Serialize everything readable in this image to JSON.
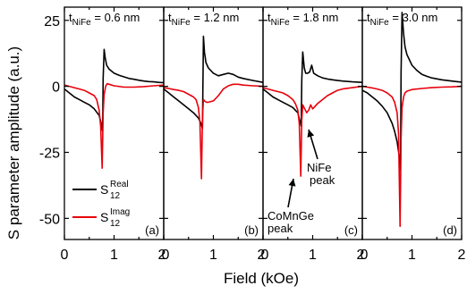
{
  "figure": {
    "ylabel": "S parameter amplitude (a.u.)",
    "xlabel": "Field (kOe)"
  },
  "colors": {
    "real": "#000000",
    "imag": "#e8000b",
    "axes": "#000000",
    "background": "#ffffff"
  },
  "legend": {
    "real": {
      "base": "S",
      "sup": "Real",
      "sub": "12"
    },
    "imag": {
      "base": "S",
      "sup": "Imag",
      "sub": "12"
    }
  },
  "annotations": {
    "nife": [
      "NiFe",
      "peak"
    ],
    "comnge": [
      "CoMnGe",
      "peak"
    ]
  },
  "chart_data": [
    {
      "type": "line",
      "panel_label": "(a)",
      "title": {
        "t": "t",
        "sub": "NiFe",
        "rest": " = 0.6 nm"
      },
      "xlim": [
        0,
        2
      ],
      "ylim": [
        -58,
        30
      ],
      "xticks": [
        "0",
        "1",
        "2"
      ],
      "yticks": [
        25,
        0,
        -25,
        -50
      ],
      "series": [
        {
          "key": "real",
          "x": [
            0.0,
            0.1,
            0.2,
            0.3,
            0.4,
            0.5,
            0.6,
            0.7,
            0.74,
            0.77,
            0.78,
            0.8,
            0.82,
            0.85,
            0.9,
            1.0,
            1.1,
            1.2,
            1.3,
            1.4,
            1.5,
            1.6,
            1.7,
            1.8,
            1.9,
            2.0
          ],
          "y": [
            -1,
            -2.5,
            -4,
            -5,
            -6,
            -7,
            -8.5,
            -11,
            -14,
            -17,
            3,
            14,
            11,
            8,
            6.5,
            5,
            4.2,
            3.6,
            3,
            2.7,
            2.3,
            2,
            1.8,
            1.7,
            1.5,
            1.4
          ]
        },
        {
          "key": "imag",
          "x": [
            0.0,
            0.1,
            0.2,
            0.3,
            0.4,
            0.5,
            0.6,
            0.65,
            0.7,
            0.73,
            0.76,
            0.78,
            0.8,
            0.83,
            0.86,
            0.9,
            1.0,
            1.2,
            1.4,
            1.6,
            1.8,
            2.0
          ],
          "y": [
            0.5,
            0,
            -0.5,
            -1,
            -1.5,
            -2.5,
            -3.5,
            -5,
            -9,
            -15,
            -31,
            -10,
            -3,
            0,
            1,
            0.8,
            0.2,
            -0.3,
            -0.3,
            -0.1,
            0.2,
            0.5
          ]
        }
      ]
    },
    {
      "type": "line",
      "panel_label": "(b)",
      "title": {
        "t": "t",
        "sub": "NiFe",
        "rest": " = 1.2 nm"
      },
      "xlim": [
        0,
        2
      ],
      "ylim": [
        -58,
        30
      ],
      "xticks": [
        "0",
        "1",
        "2"
      ],
      "yticks": [
        25,
        0,
        -25,
        -50
      ],
      "series": [
        {
          "key": "real",
          "x": [
            0.0,
            0.1,
            0.2,
            0.3,
            0.4,
            0.5,
            0.6,
            0.7,
            0.75,
            0.78,
            0.8,
            0.82,
            0.85,
            0.9,
            1.0,
            1.1,
            1.2,
            1.3,
            1.4,
            1.5,
            1.6,
            1.8,
            2.0
          ],
          "y": [
            -1,
            -2.5,
            -4,
            -5.5,
            -7,
            -8.5,
            -10,
            -12,
            -14,
            -16,
            19,
            13,
            9,
            7,
            5,
            4,
            4.5,
            5,
            4.5,
            3.5,
            3,
            2.2,
            1.5
          ]
        },
        {
          "key": "imag",
          "x": [
            0.0,
            0.1,
            0.2,
            0.3,
            0.4,
            0.5,
            0.6,
            0.65,
            0.7,
            0.73,
            0.76,
            0.78,
            0.8,
            0.82,
            0.86,
            0.9,
            1.0,
            1.1,
            1.2,
            1.3,
            1.4,
            1.5,
            1.6,
            1.8,
            2.0
          ],
          "y": [
            -0.5,
            -0.8,
            -1.2,
            -1.5,
            -2,
            -3,
            -4,
            -5,
            -8,
            -14,
            -35,
            -12,
            -5,
            -5.5,
            -6,
            -6,
            -5.5,
            -3.5,
            -1,
            0.2,
            0.8,
            0.8,
            0.5,
            0.2,
            0
          ]
        }
      ]
    },
    {
      "type": "line",
      "panel_label": "(c)",
      "title": {
        "t": "t",
        "sub": "NiFe",
        "rest": " = 1.8 nm"
      },
      "xlim": [
        0,
        2
      ],
      "ylim": [
        -58,
        30
      ],
      "xticks": [
        "0",
        "1",
        "2"
      ],
      "yticks": [
        25,
        0,
        -25,
        -50
      ],
      "series": [
        {
          "key": "real",
          "x": [
            0.0,
            0.1,
            0.2,
            0.3,
            0.4,
            0.5,
            0.6,
            0.7,
            0.74,
            0.77,
            0.78,
            0.8,
            0.83,
            0.86,
            0.9,
            0.94,
            0.98,
            1.02,
            1.1,
            1.2,
            1.3,
            1.4,
            1.5,
            1.6,
            1.8,
            2.0
          ],
          "y": [
            -1,
            -2.5,
            -4,
            -5,
            -6,
            -7,
            -8,
            -10,
            -13,
            -15,
            2,
            13,
            7,
            5,
            5,
            5.5,
            8,
            5,
            4,
            3.2,
            2.8,
            2.5,
            2.2,
            2,
            1.7,
            1.5
          ]
        },
        {
          "key": "imag",
          "x": [
            0.0,
            0.1,
            0.2,
            0.3,
            0.4,
            0.5,
            0.6,
            0.65,
            0.7,
            0.73,
            0.76,
            0.78,
            0.8,
            0.84,
            0.88,
            0.92,
            0.96,
            1.0,
            1.05,
            1.1,
            1.2,
            1.3,
            1.4,
            1.5,
            1.6,
            1.8,
            2.0
          ],
          "y": [
            -0.5,
            -1,
            -1.5,
            -2,
            -2.5,
            -3.5,
            -5,
            -6.5,
            -9,
            -14,
            -34,
            -13,
            -7,
            -8.5,
            -10,
            -9,
            -7,
            -8.5,
            -7.5,
            -6.5,
            -5,
            -3.5,
            -2.5,
            -1.5,
            -1,
            -0.5,
            0
          ]
        }
      ]
    },
    {
      "type": "line",
      "panel_label": "(d)",
      "title": {
        "t": "t",
        "sub": "NiFe",
        "rest": " = 3.0 nm"
      },
      "xlim": [
        0,
        2
      ],
      "ylim": [
        -58,
        30
      ],
      "xticks": [
        "0",
        "1",
        "2"
      ],
      "yticks": [
        25,
        0,
        -25,
        -50
      ],
      "series": [
        {
          "key": "real",
          "x": [
            0.0,
            0.1,
            0.2,
            0.3,
            0.4,
            0.5,
            0.6,
            0.65,
            0.7,
            0.74,
            0.77,
            0.78,
            0.8,
            0.83,
            0.86,
            0.9,
            1.0,
            1.1,
            1.2,
            1.3,
            1.4,
            1.6,
            1.8,
            2.0
          ],
          "y": [
            -1.5,
            -2.5,
            -4,
            -5.5,
            -7.5,
            -10,
            -14,
            -17,
            -21,
            -26,
            -32,
            5,
            28,
            20,
            15,
            12,
            8,
            6,
            4.5,
            3.8,
            3.2,
            2.5,
            2,
            1.6
          ]
        },
        {
          "key": "imag",
          "x": [
            0.0,
            0.1,
            0.2,
            0.3,
            0.4,
            0.5,
            0.6,
            0.65,
            0.7,
            0.73,
            0.76,
            0.78,
            0.8,
            0.83,
            0.86,
            0.9,
            1.0,
            1.2,
            1.4,
            1.6,
            1.8,
            2.0
          ],
          "y": [
            0,
            -0.3,
            -0.6,
            -1,
            -1.5,
            -2.5,
            -4,
            -6,
            -10,
            -18,
            -53,
            -20,
            -8,
            -4,
            -2.5,
            -1.8,
            -1.2,
            -0.8,
            -0.5,
            -0.3,
            -0.2,
            0
          ]
        }
      ]
    }
  ]
}
